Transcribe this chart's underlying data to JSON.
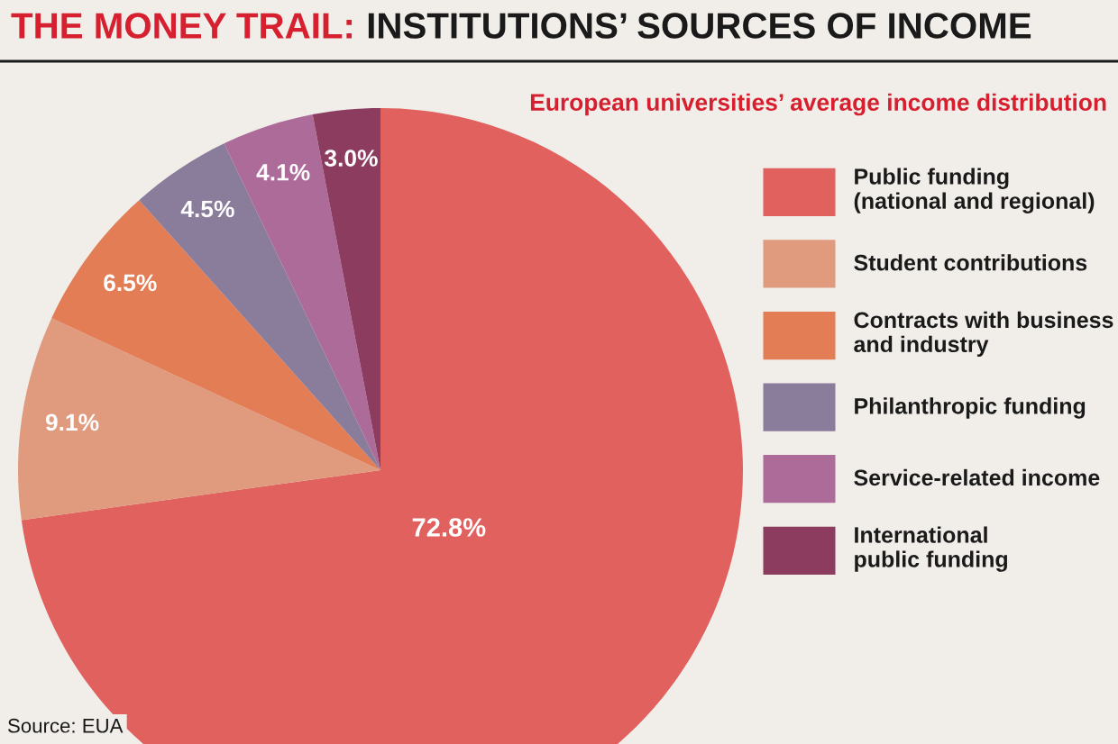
{
  "chart_data": {
    "type": "pie",
    "title": "THE MONEY TRAIL: INSTITUTIONS’ SOURCES OF INCOME",
    "subtitle": "European universities’ average income distribution",
    "categories": [
      "Public funding\n(national and regional)",
      "Student contributions",
      "Contracts with business\nand industry",
      "Philanthropic funding",
      "Service-related income",
      "International\npublic funding"
    ],
    "values": [
      72.8,
      9.1,
      6.5,
      4.5,
      4.1,
      3.0
    ],
    "value_labels": [
      "72.8%",
      "9.1%",
      "6.5%",
      "4.5%",
      "4.1%",
      "3.0%"
    ],
    "colors": [
      "#e0615e",
      "#e09a7e",
      "#e37d55",
      "#8a7d9c",
      "#ad6b99",
      "#8c3d5f"
    ],
    "legend": "right",
    "annotations": [
      "Source: EUA"
    ]
  }
}
